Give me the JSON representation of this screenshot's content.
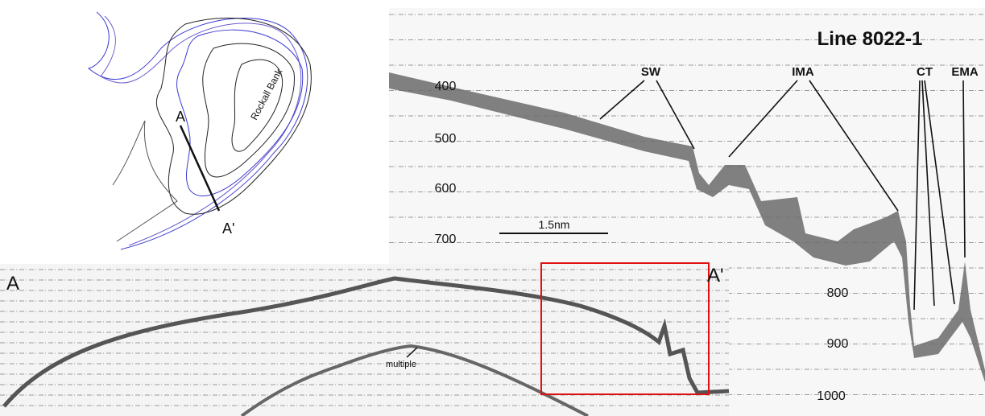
{
  "map": {
    "start": "A",
    "end": "A'",
    "bank": "Rockall Bank"
  },
  "profile_upper": {
    "title": "Line 8022-1",
    "features": [
      "SW",
      "IMA",
      "CT",
      "EMA"
    ],
    "depths": [
      400,
      500,
      600,
      700,
      800,
      900,
      1000
    ],
    "scale_bar": "1.5nm"
  },
  "profile_lower": {
    "start": "A",
    "end": "A'",
    "annotation": "multiple"
  }
}
